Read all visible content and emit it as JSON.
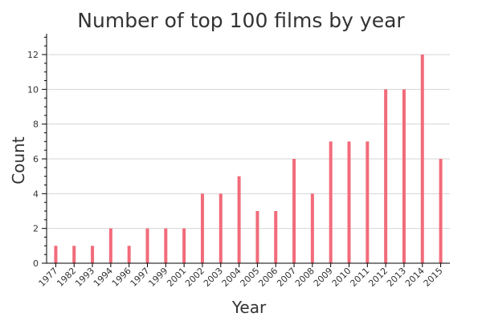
{
  "chart_data": {
    "type": "bar",
    "title": "Number of top 100 films by year",
    "xlabel": "Year",
    "ylabel": "Count",
    "categories": [
      "1977",
      "1982",
      "1993",
      "1994",
      "1996",
      "1997",
      "1999",
      "2001",
      "2002",
      "2003",
      "2004",
      "2005",
      "2006",
      "2007",
      "2008",
      "2009",
      "2010",
      "2011",
      "2012",
      "2013",
      "2014",
      "2015"
    ],
    "values": [
      1,
      1,
      1,
      2,
      1,
      2,
      2,
      2,
      4,
      4,
      5,
      3,
      3,
      6,
      4,
      7,
      7,
      7,
      10,
      10,
      12,
      6
    ],
    "ylim": [
      0,
      13.2
    ],
    "yticks": [
      0,
      2,
      4,
      6,
      8,
      10,
      12
    ],
    "grid": true,
    "bar_color": "#f26b7a"
  }
}
